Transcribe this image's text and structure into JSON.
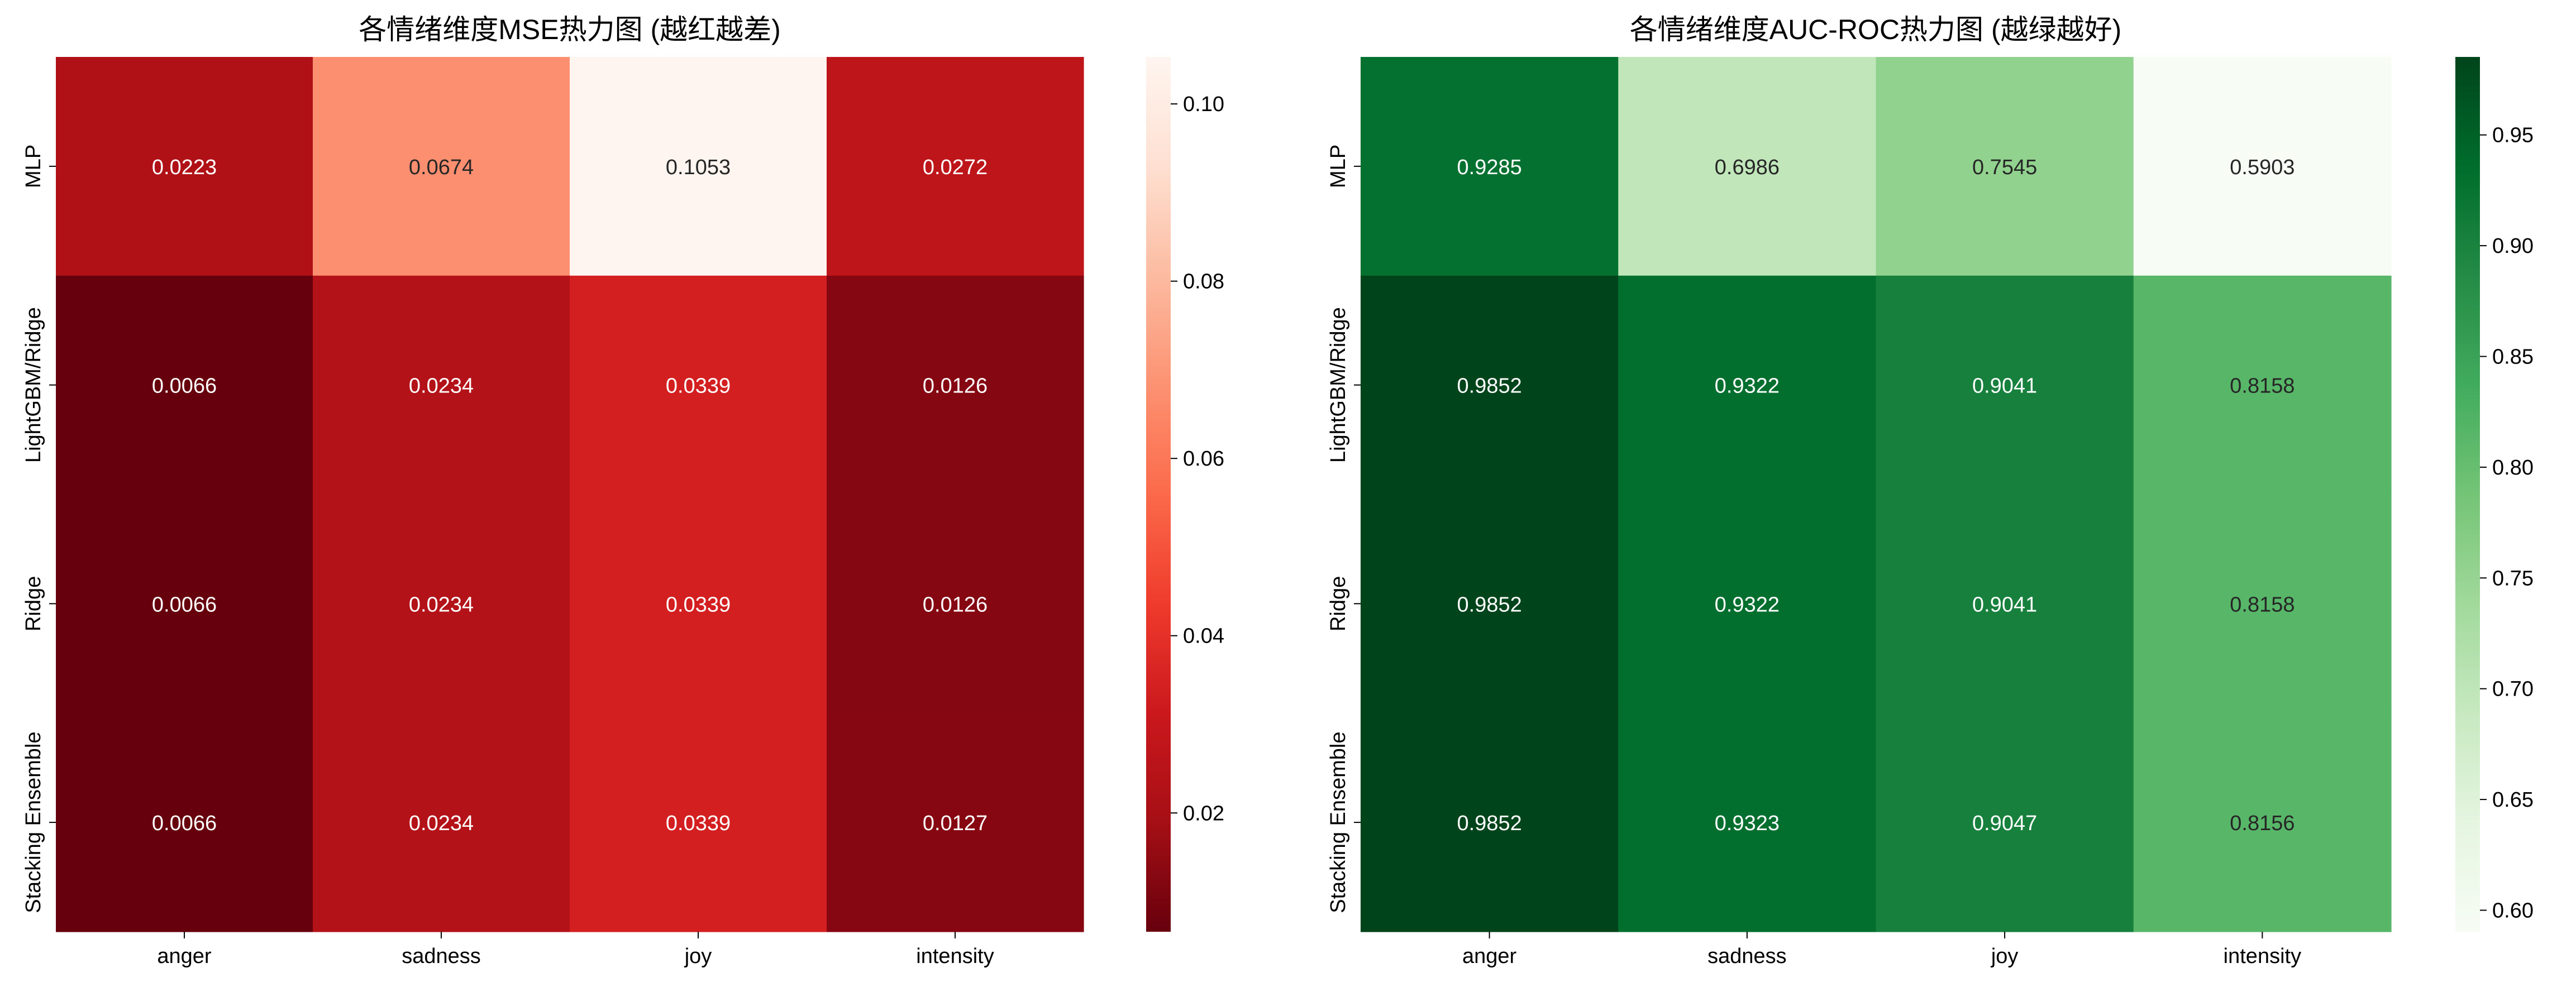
{
  "chart_data": [
    {
      "type": "heatmap",
      "title": "各情绪维度MSE热力图 (越红越差)",
      "columns": [
        "anger",
        "sadness",
        "joy",
        "intensity"
      ],
      "rows": [
        "MLP",
        "LightGBM/Ridge",
        "Ridge",
        "Stacking Ensemble"
      ],
      "values": [
        [
          0.0223,
          0.0674,
          0.1053,
          0.0272
        ],
        [
          0.0066,
          0.0234,
          0.0339,
          0.0126
        ],
        [
          0.0066,
          0.0234,
          0.0339,
          0.0126
        ],
        [
          0.0066,
          0.0234,
          0.0339,
          0.0127
        ]
      ],
      "value_labels": [
        [
          "0.0223",
          "0.0674",
          "0.1053",
          "0.0272"
        ],
        [
          "0.0066",
          "0.0234",
          "0.0339",
          "0.0126"
        ],
        [
          "0.0066",
          "0.0234",
          "0.0339",
          "0.0126"
        ],
        [
          "0.0066",
          "0.0234",
          "0.0339",
          "0.0127"
        ]
      ],
      "colormap": "Reds",
      "colormap_stops": [
        "#fff5f0",
        "#fee0d2",
        "#fcbba1",
        "#fc9272",
        "#fb6a4a",
        "#ef3b2c",
        "#cb181d",
        "#a50f15",
        "#67000d"
      ],
      "reversed": true,
      "vmin": 0.0066,
      "vmax": 0.1053,
      "colorbar_ticks": [
        0.02,
        0.04,
        0.06,
        0.08,
        0.1
      ],
      "colorbar_tick_labels": [
        "0.02",
        "0.04",
        "0.06",
        "0.08",
        "0.10"
      ]
    },
    {
      "type": "heatmap",
      "title": "各情绪维度AUC-ROC热力图 (越绿越好)",
      "columns": [
        "anger",
        "sadness",
        "joy",
        "intensity"
      ],
      "rows": [
        "MLP",
        "LightGBM/Ridge",
        "Ridge",
        "Stacking Ensemble"
      ],
      "values": [
        [
          0.9285,
          0.6986,
          0.7545,
          0.5903
        ],
        [
          0.9852,
          0.9322,
          0.9041,
          0.8158
        ],
        [
          0.9852,
          0.9322,
          0.9041,
          0.8158
        ],
        [
          0.9852,
          0.9323,
          0.9047,
          0.8156
        ]
      ],
      "value_labels": [
        [
          "0.9285",
          "0.6986",
          "0.7545",
          "0.5903"
        ],
        [
          "0.9852",
          "0.9322",
          "0.9041",
          "0.8158"
        ],
        [
          "0.9852",
          "0.9322",
          "0.9041",
          "0.8158"
        ],
        [
          "0.9852",
          "0.9323",
          "0.9047",
          "0.8156"
        ]
      ],
      "colormap": "Greens",
      "colormap_stops": [
        "#f7fcf5",
        "#e5f5e0",
        "#c7e9c0",
        "#a1d99b",
        "#74c476",
        "#41ab5d",
        "#238b45",
        "#006d2c",
        "#00441b"
      ],
      "reversed": false,
      "vmin": 0.5903,
      "vmax": 0.9852,
      "colorbar_ticks": [
        0.6,
        0.65,
        0.7,
        0.75,
        0.8,
        0.85,
        0.9,
        0.95
      ],
      "colorbar_tick_labels": [
        "0.60",
        "0.65",
        "0.70",
        "0.75",
        "0.80",
        "0.85",
        "0.90",
        "0.95"
      ]
    }
  ]
}
